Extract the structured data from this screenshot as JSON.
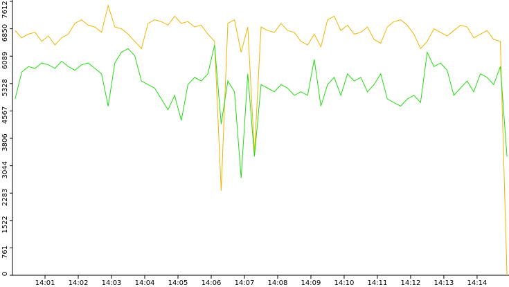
{
  "chart_data": {
    "type": "line",
    "x": [
      0.1,
      0.3,
      0.5,
      0.7,
      0.9,
      1.1,
      1.3,
      1.5,
      1.7,
      1.9,
      2.1,
      2.3,
      2.5,
      2.7,
      2.9,
      3.1,
      3.3,
      3.5,
      3.7,
      3.9,
      4.1,
      4.3,
      4.5,
      4.7,
      4.9,
      5.1,
      5.3,
      5.5,
      5.7,
      5.9,
      6.1,
      6.3,
      6.5,
      6.7,
      6.9,
      7.1,
      7.3,
      7.5,
      7.7,
      7.9,
      8.1,
      8.3,
      8.5,
      8.7,
      8.9,
      9.1,
      9.3,
      9.5,
      9.7,
      9.9,
      10.1,
      10.3,
      10.5,
      10.7,
      10.9,
      11.1,
      11.3,
      11.5,
      11.7,
      11.9,
      12.1,
      12.3,
      12.5,
      12.7,
      12.9,
      13.1,
      13.3,
      13.5,
      13.7,
      13.9,
      14.1,
      14.3,
      14.5,
      14.7,
      14.9
    ],
    "series": [
      {
        "color": "#f2b400",
        "values": [
          6800,
          6600,
          6700,
          6750,
          6500,
          6650,
          6400,
          6600,
          6700,
          7000,
          7100,
          6950,
          6900,
          6750,
          7500,
          6900,
          6850,
          6700,
          6500,
          6300,
          7000,
          7100,
          7050,
          6950,
          7200,
          7000,
          7050,
          6900,
          6950,
          6700,
          6500,
          2350,
          7000,
          7100,
          6200,
          6900,
          3400,
          6900,
          6800,
          6750,
          7000,
          6800,
          6750,
          6500,
          6400,
          6700,
          6350,
          7100,
          7200,
          6800,
          6950,
          6700,
          6750,
          6900,
          6550,
          6450,
          6900,
          7050,
          7100,
          6950,
          6700,
          6300,
          6500,
          6850,
          6750,
          6650,
          6800,
          6950,
          6900,
          6600,
          6700,
          6800,
          6550,
          6500,
          0
        ]
      },
      {
        "color": "#22dd11",
        "values": [
          4900,
          5650,
          5800,
          5750,
          5900,
          5850,
          5750,
          5950,
          5800,
          5700,
          5850,
          5900,
          5750,
          5600,
          4700,
          5900,
          6200,
          6300,
          6100,
          5400,
          5300,
          5200,
          4900,
          4600,
          5000,
          4300,
          5300,
          5500,
          5400,
          5600,
          6400,
          4200,
          5400,
          5100,
          2700,
          5600,
          3300,
          5300,
          5200,
          5100,
          5300,
          5200,
          5000,
          5100,
          5000,
          6000,
          4700,
          5300,
          5500,
          5000,
          5600,
          5400,
          5500,
          5100,
          5300,
          5600,
          4900,
          4800,
          4700,
          4900,
          5000,
          4800,
          6200,
          5800,
          5900,
          5700,
          5000,
          5200,
          5400,
          5100,
          5600,
          5500,
          5300,
          5800,
          3300
        ]
      }
    ],
    "xlim": [
      0.02,
      14.96
    ],
    "xticks": [
      {
        "value": 1,
        "label": "14:01"
      },
      {
        "value": 2,
        "label": "14:02"
      },
      {
        "value": 3,
        "label": "14:03"
      },
      {
        "value": 4,
        "label": "14:04"
      },
      {
        "value": 5,
        "label": "14:05"
      },
      {
        "value": 6,
        "label": "14:06"
      },
      {
        "value": 7,
        "label": "14:07"
      },
      {
        "value": 8,
        "label": "14:08"
      },
      {
        "value": 9,
        "label": "14:09"
      },
      {
        "value": 10,
        "label": "14:10"
      },
      {
        "value": 11,
        "label": "14:11"
      },
      {
        "value": 12,
        "label": "14:12"
      },
      {
        "value": 13,
        "label": "14:13"
      },
      {
        "value": 14,
        "label": "14:14"
      }
    ],
    "ylim": [
      0,
      7612
    ],
    "yticks": [
      0,
      761,
      1522,
      2283,
      3044,
      3806,
      4567,
      5328,
      6089,
      6850,
      7612
    ]
  }
}
